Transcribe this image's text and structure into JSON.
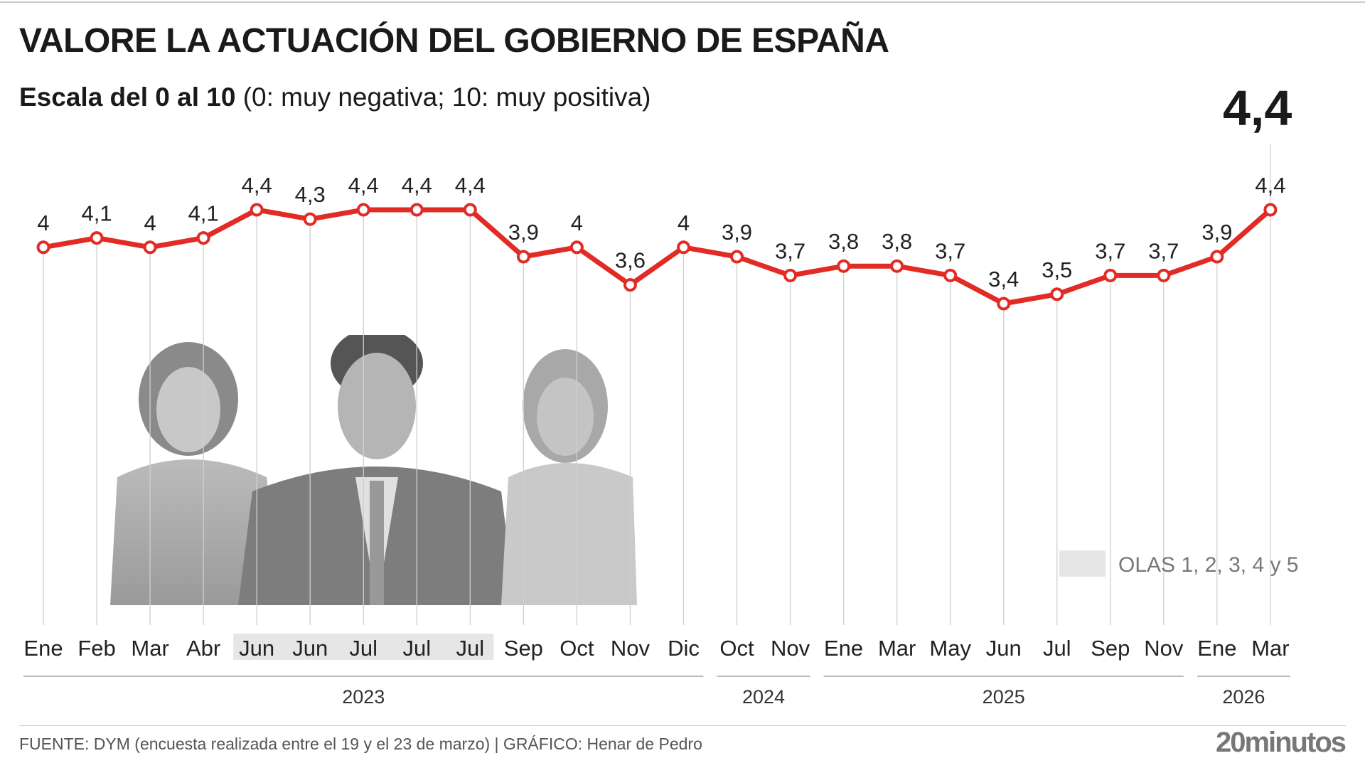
{
  "header": {
    "title": "VALORE LA ACTUACIÓN DEL GOBIERNO DE ESPAÑA",
    "subtitle_bold": "Escala del 0 al 10",
    "subtitle_rest": " (0: muy negativa; 10: muy positiva)",
    "latest_value": "4,4"
  },
  "chart_data": {
    "type": "line",
    "categories": [
      "Ene",
      "Feb",
      "Mar",
      "Abr",
      "Jun",
      "Jun",
      "Jul",
      "Jul",
      "Jul",
      "Sep",
      "Oct",
      "Nov",
      "Dic",
      "Oct",
      "Nov",
      "Ene",
      "Mar",
      "May",
      "Jun",
      "Jul",
      "Sep",
      "Nov",
      "Ene",
      "Mar"
    ],
    "values": [
      4,
      4.1,
      4,
      4.1,
      4.4,
      4.3,
      4.4,
      4.4,
      4.4,
      3.9,
      4,
      3.6,
      4,
      3.9,
      3.7,
      3.8,
      3.8,
      3.7,
      3.4,
      3.5,
      3.7,
      3.7,
      3.9,
      4.4
    ],
    "labels": [
      "4",
      "4,1",
      "4",
      "4,1",
      "4,4",
      "4,3",
      "4,4",
      "4,4",
      "4,4",
      "3,9",
      "4",
      "3,6",
      "4",
      "3,9",
      "3,7",
      "3,8",
      "3,8",
      "3,7",
      "3,4",
      "3,5",
      "3,7",
      "3,7",
      "3,9",
      "4,4"
    ],
    "highlighted_indices": [
      4,
      5,
      6,
      7,
      8
    ],
    "years": [
      {
        "label": "2023",
        "from": 0,
        "to": 12
      },
      {
        "label": "2024",
        "from": 13,
        "to": 14
      },
      {
        "label": "2025",
        "from": 15,
        "to": 21
      },
      {
        "label": "2026",
        "from": 22,
        "to": 23
      }
    ],
    "legend": {
      "label": "OLAS 1, 2, 3, 4 y 5",
      "color": "#e6e6e6",
      "placement": "bottom-right"
    },
    "line_color": "#e32b26",
    "grid": "vertical"
  },
  "footer": {
    "source": "FUENTE: DYM (encuesta realizada entre el 19 y el 23 de marzo)  |  GRÁFICO: Henar de Pedro",
    "logo": "20minutos"
  }
}
